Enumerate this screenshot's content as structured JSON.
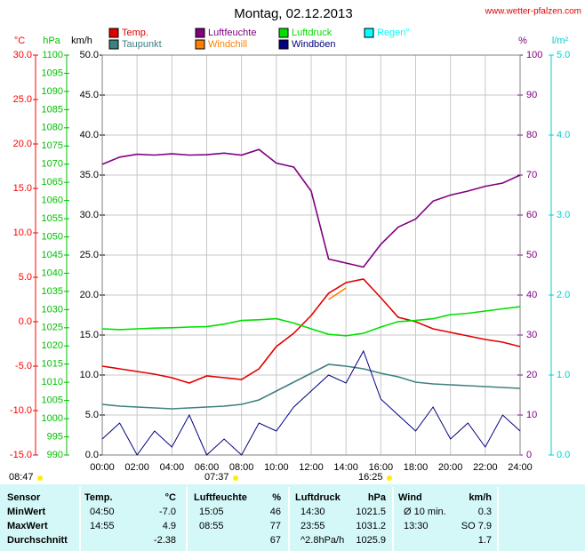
{
  "chart_data": {
    "type": "line",
    "title": "Montag, 02.12.2013",
    "source": "www.wetter-pfalzen.com",
    "x": [
      0,
      1,
      2,
      3,
      4,
      5,
      6,
      7,
      8,
      9,
      10,
      11,
      12,
      13,
      14,
      15,
      16,
      17,
      18,
      19,
      20,
      21,
      22,
      23,
      24
    ],
    "xlim": [
      0,
      24
    ],
    "xticks": [
      {
        "value": 0,
        "label": "00:00"
      },
      {
        "value": 2,
        "label": "02:00"
      },
      {
        "value": 4,
        "label": "04:00"
      },
      {
        "value": 6,
        "label": "06:00"
      },
      {
        "value": 8,
        "label": "08:00"
      },
      {
        "value": 10,
        "label": "10:00"
      },
      {
        "value": 12,
        "label": "12:00"
      },
      {
        "value": 14,
        "label": "14:00"
      },
      {
        "value": 16,
        "label": "16:00"
      },
      {
        "value": 18,
        "label": "18:00"
      },
      {
        "value": 20,
        "label": "20:00"
      },
      {
        "value": 22,
        "label": "22:00"
      },
      {
        "value": 24,
        "label": "24:00"
      }
    ],
    "axes": [
      {
        "label": "°C",
        "color": "#ff0000",
        "lim": [
          -15,
          30
        ],
        "ticks": [
          {
            "value": -15,
            "label": "-15.0"
          },
          {
            "value": -10,
            "label": "-10.0"
          },
          {
            "value": -5,
            "label": "-5.0"
          },
          {
            "value": 0,
            "label": "0.0"
          },
          {
            "value": 5,
            "label": "5.0"
          },
          {
            "value": 10,
            "label": "10.0"
          },
          {
            "value": 15,
            "label": "15.0"
          },
          {
            "value": 20,
            "label": "20.0"
          },
          {
            "value": 25,
            "label": "25.0"
          },
          {
            "value": 30,
            "label": "30.0"
          }
        ]
      },
      {
        "label": "hPa",
        "color": "#00c000",
        "lim": [
          990,
          1100
        ],
        "ticks": [
          990,
          995,
          1000,
          1005,
          1010,
          1015,
          1020,
          1025,
          1030,
          1035,
          1040,
          1045,
          1050,
          1055,
          1060,
          1065,
          1070,
          1075,
          1080,
          1085,
          1090,
          1095,
          1100
        ]
      },
      {
        "label": "km/h",
        "color": "#000000",
        "lim": [
          0,
          50
        ],
        "grid": true,
        "ticks": [
          {
            "value": 0,
            "label": "0.0"
          },
          {
            "value": 5,
            "label": "5.0"
          },
          {
            "value": 10,
            "label": "10.0"
          },
          {
            "value": 15,
            "label": "15.0"
          },
          {
            "value": 20,
            "label": "20.0"
          },
          {
            "value": 25,
            "label": "25.0"
          },
          {
            "value": 30,
            "label": "30.0"
          },
          {
            "value": 35,
            "label": "35.0"
          },
          {
            "value": 40,
            "label": "40.0"
          },
          {
            "value": 45,
            "label": "45.0"
          },
          {
            "value": 50,
            "label": "50.0"
          }
        ]
      },
      {
        "label": "%",
        "color": "#800080",
        "lim": [
          0,
          100
        ],
        "ticks": [
          0,
          10,
          20,
          30,
          40,
          50,
          60,
          70,
          80,
          90,
          100
        ]
      },
      {
        "label": "l/m²",
        "color": "#00d0d0",
        "lim": [
          0,
          5
        ],
        "ticks": [
          {
            "value": 0,
            "label": "0.0"
          },
          {
            "value": 1,
            "label": "1.0"
          },
          {
            "value": 2,
            "label": "2.0"
          },
          {
            "value": 3,
            "label": "3.0"
          },
          {
            "value": 4,
            "label": "4.0"
          },
          {
            "value": 5,
            "label": "5.0"
          }
        ]
      }
    ],
    "series": [
      {
        "name": "Temp.",
        "color": "#e00000",
        "axis": "°C",
        "values": [
          -5.0,
          -5.3,
          -5.6,
          -5.9,
          -6.3,
          -6.9,
          -6.1,
          -6.3,
          -6.5,
          -5.3,
          -2.8,
          -1.3,
          0.7,
          3.2,
          4.4,
          4.8,
          2.7,
          0.5,
          0.0,
          -0.8,
          -1.2,
          -1.6,
          -2.0,
          -2.3,
          -2.8
        ]
      },
      {
        "name": "Taupunkt",
        "color": "#408080",
        "axis": "°C",
        "values": [
          -9.3,
          -9.5,
          -9.6,
          -9.7,
          -9.8,
          -9.7,
          -9.6,
          -9.5,
          -9.3,
          -8.8,
          -7.8,
          -6.8,
          -5.8,
          -4.8,
          -5.0,
          -5.3,
          -5.8,
          -6.2,
          -6.8,
          -7.0,
          -7.1,
          -7.2,
          -7.3,
          -7.4,
          -7.5
        ]
      },
      {
        "name": "Luftfeuchte",
        "color": "#800080",
        "axis": "%",
        "values": [
          72.7,
          74.5,
          75.2,
          75.0,
          75.3,
          75.0,
          75.1,
          75.5,
          75.0,
          76.4,
          73.0,
          72.0,
          66.0,
          49.0,
          48.0,
          47.0,
          52.7,
          57.0,
          59.0,
          63.5,
          65.0,
          66.0,
          67.2,
          68.0,
          70.0
        ]
      },
      {
        "name": "Windchill",
        "color": "#ff8000",
        "axis": "°C",
        "values": [
          null,
          null,
          null,
          null,
          null,
          null,
          null,
          null,
          null,
          null,
          null,
          null,
          null,
          2.5,
          3.8,
          null,
          null,
          null,
          null,
          null,
          null,
          null,
          null,
          null,
          null
        ]
      },
      {
        "name": "Luftdruck",
        "color": "#00e000",
        "axis": "hPa",
        "values": [
          1024.7,
          1024.5,
          1024.7,
          1024.9,
          1025.0,
          1025.2,
          1025.3,
          1026.0,
          1027.0,
          1027.2,
          1027.5,
          1026.3,
          1024.7,
          1023.2,
          1022.8,
          1023.5,
          1025.2,
          1026.7,
          1027.0,
          1027.5,
          1028.6,
          1029.0,
          1029.6,
          1030.2,
          1030.8
        ]
      },
      {
        "name": "Windböen",
        "color": "#000080",
        "axis": "km/h",
        "values": [
          2,
          4,
          0,
          3,
          1,
          5,
          0,
          2,
          0,
          4,
          3,
          6,
          8,
          10,
          9,
          13,
          7,
          5,
          3,
          6,
          2,
          4,
          1,
          5,
          3
        ]
      },
      {
        "name": "Regen°",
        "color": "#00ffff",
        "axis": "l/m²",
        "bars": true,
        "values": [
          0,
          0,
          0,
          0,
          0,
          0,
          0,
          0,
          0,
          0,
          0,
          0,
          0,
          0,
          0,
          0,
          0,
          0,
          0,
          0,
          0,
          0,
          0,
          0,
          0
        ]
      }
    ],
    "annotations": [
      "08:47",
      "07:37",
      "16:25"
    ]
  },
  "table": {
    "header": [
      "Sensor",
      "Temp.",
      "°C",
      "Luftfeuchte",
      "%",
      "Luftdruck",
      "hPa",
      "Wind",
      "km/h"
    ],
    "rows": [
      {
        "label": "MinWert",
        "temp": {
          "time": "04:50",
          "value": "-7.0"
        },
        "humidity": {
          "time": "15:05",
          "value": "46"
        },
        "pressure": {
          "time": "14:30",
          "value": "1021.5"
        },
        "wind": {
          "time": "Ø 10 min.",
          "value": "0.3"
        }
      },
      {
        "label": "MaxWert",
        "temp": {
          "time": "14:55",
          "value": "4.9"
        },
        "humidity": {
          "time": "08:55",
          "value": "77"
        },
        "pressure": {
          "time": "23:55",
          "value": "1031.2"
        },
        "wind": {
          "time": "13:30",
          "value": "SO 7.9"
        }
      },
      {
        "label": "Durchschnitt",
        "temp": {
          "value": "-2.38"
        },
        "humidity": {
          "value": "67"
        },
        "pressure": {
          "time": "^2.8hPa/h",
          "value": "1025.9"
        },
        "wind": {
          "value": "1.7"
        }
      }
    ]
  }
}
